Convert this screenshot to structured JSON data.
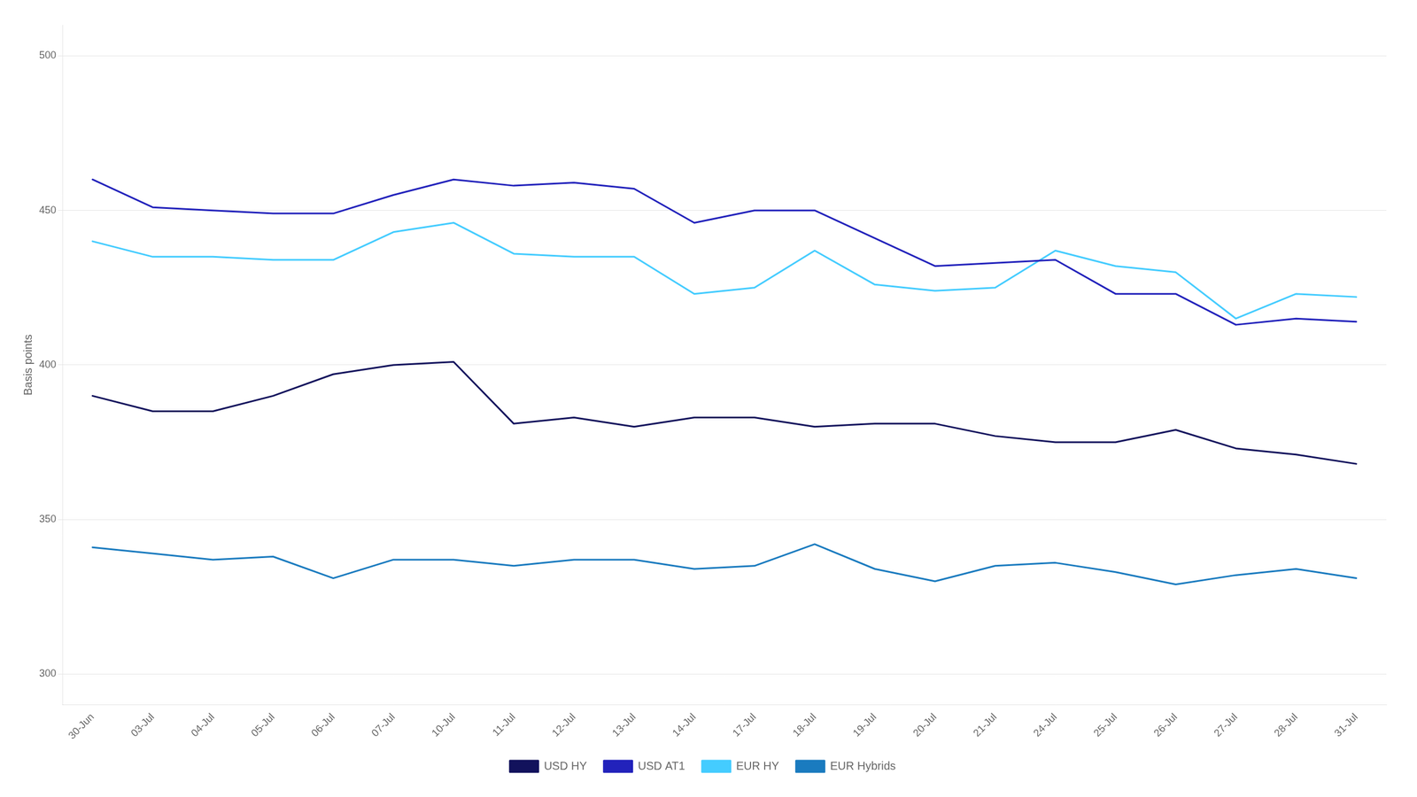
{
  "chart_data": {
    "type": "line",
    "categories": [
      "30-Jun",
      "03-Jul",
      "04-Jul",
      "05-Jul",
      "06-Jul",
      "07-Jul",
      "10-Jul",
      "11-Jul",
      "12-Jul",
      "13-Jul",
      "14-Jul",
      "17-Jul",
      "18-Jul",
      "19-Jul",
      "20-Jul",
      "21-Jul",
      "24-Jul",
      "25-Jul",
      "26-Jul",
      "27-Jul",
      "28-Jul",
      "31-Jul"
    ],
    "series": [
      {
        "name": "USD HY",
        "color": "#12125c",
        "values": [
          390,
          385,
          385,
          390,
          397,
          400,
          401,
          381,
          383,
          380,
          383,
          383,
          380,
          381,
          381,
          377,
          375,
          375,
          379,
          373,
          371,
          368
        ]
      },
      {
        "name": "USD AT1",
        "color": "#2222bb",
        "values": [
          460,
          451,
          450,
          449,
          449,
          455,
          460,
          458,
          459,
          457,
          446,
          450,
          450,
          441,
          432,
          433,
          434,
          423,
          423,
          413,
          415,
          414
        ]
      },
      {
        "name": "EUR HY",
        "color": "#44ccff",
        "values": [
          440,
          435,
          435,
          434,
          434,
          443,
          446,
          436,
          435,
          435,
          423,
          425,
          437,
          426,
          424,
          425,
          437,
          432,
          430,
          415,
          423,
          422
        ]
      },
      {
        "name": "EUR Hybrids",
        "color": "#1a7bbf",
        "values": [
          341,
          339,
          337,
          338,
          331,
          337,
          337,
          335,
          337,
          337,
          334,
          335,
          342,
          334,
          330,
          335,
          336,
          333,
          329,
          332,
          334,
          331
        ]
      }
    ],
    "ylim": [
      290,
      510
    ],
    "yticks": [
      300,
      350,
      400,
      450,
      500
    ],
    "ylabel": "Basis points",
    "grid": true,
    "legend": "bottom"
  }
}
